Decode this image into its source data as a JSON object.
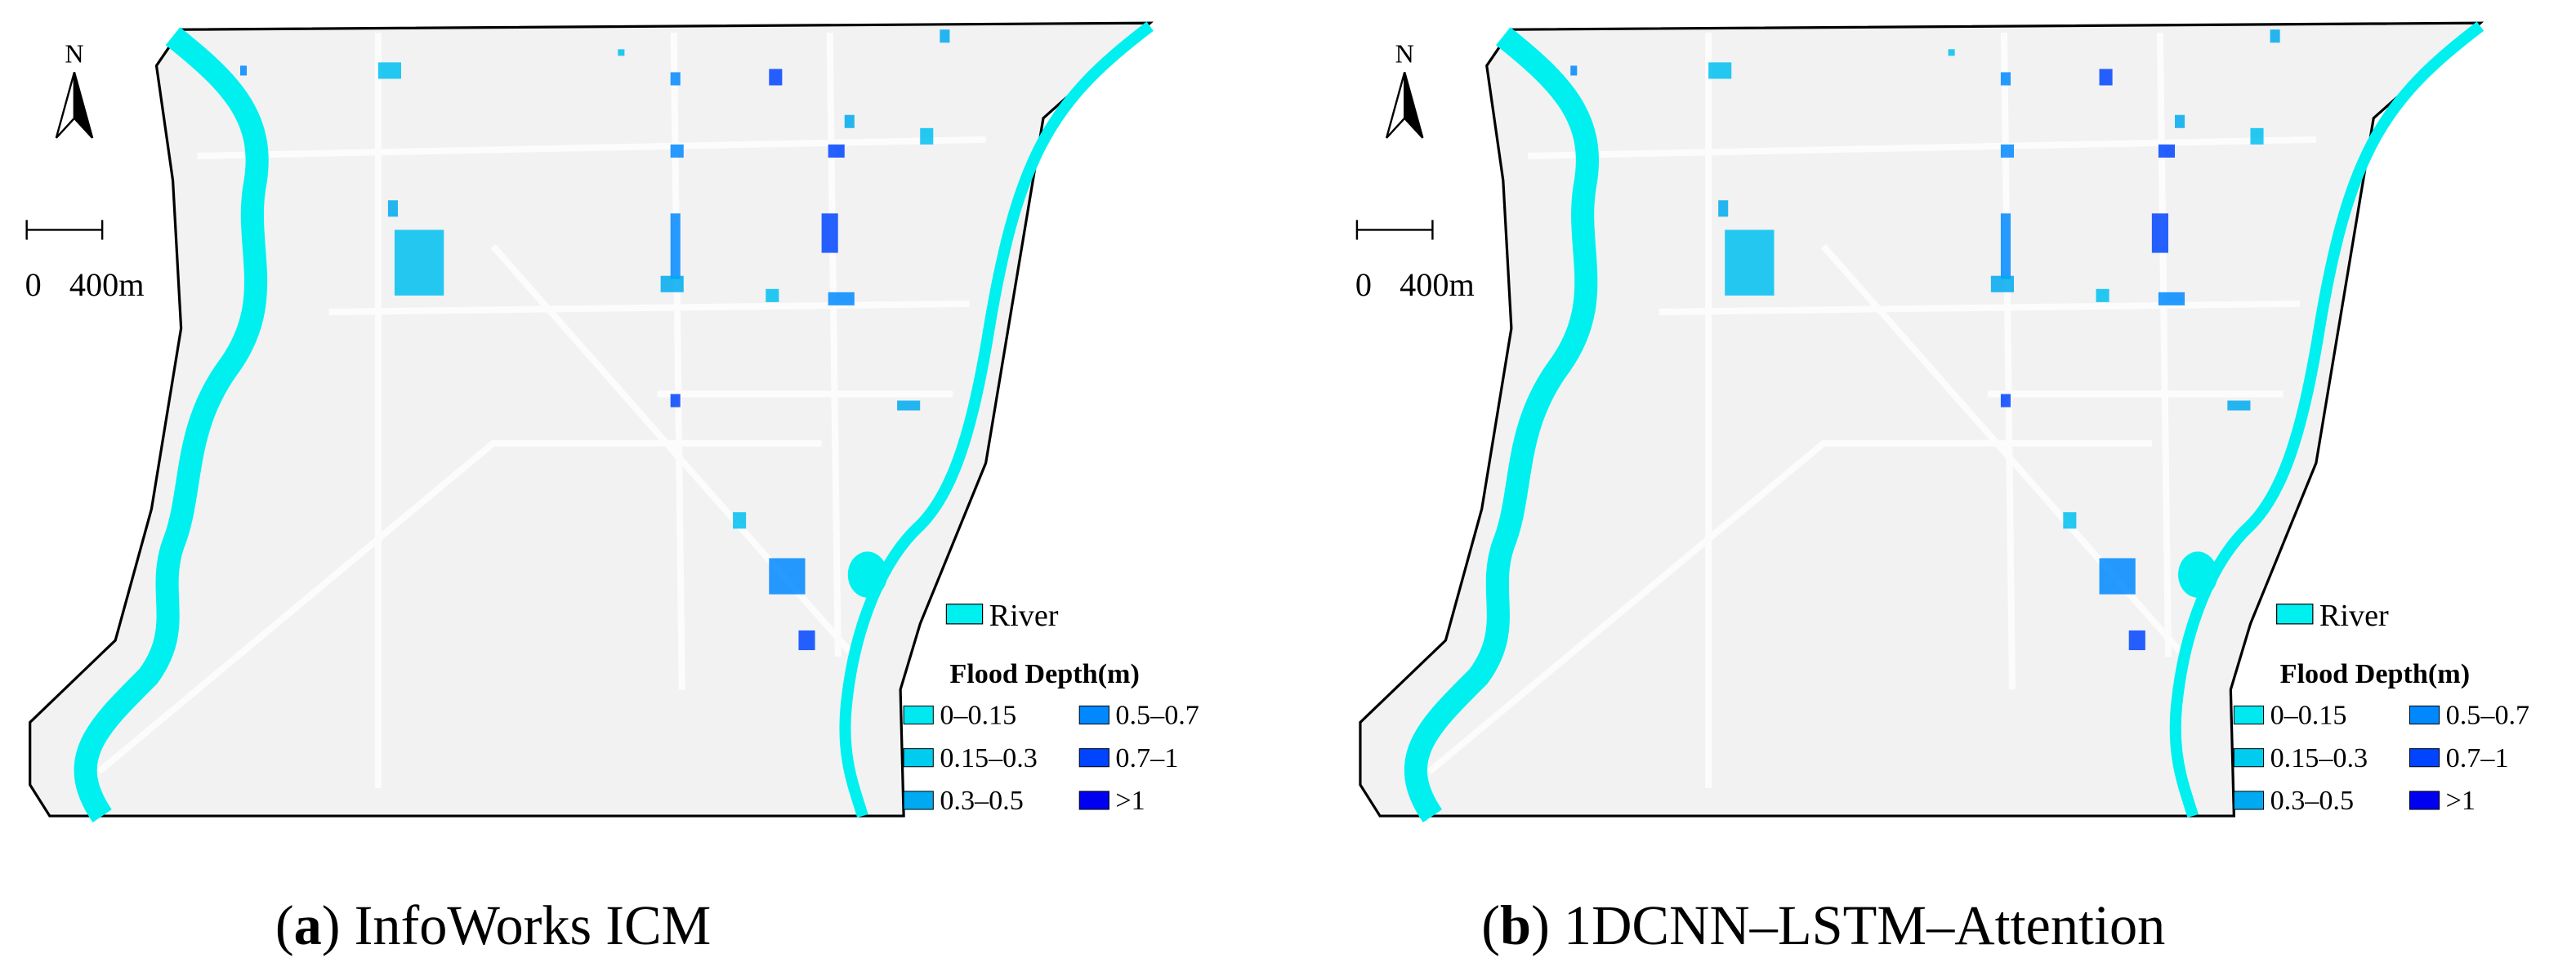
{
  "panels": [
    {
      "north": "N",
      "scale_start": "0",
      "scale_end": "400m",
      "river_label": "River",
      "legend_title": "Flood Depth(m)",
      "legend_items": [
        {
          "label": "0–0.15",
          "color": "#00e8f0"
        },
        {
          "label": "0.15–0.3",
          "color": "#00ccf0"
        },
        {
          "label": "0.3–0.5",
          "color": "#00aaf0"
        },
        {
          "label": "0.5–0.7",
          "color": "#0088ff"
        },
        {
          "label": "0.7–1",
          "color": "#0044ff"
        },
        {
          "label": ">1",
          "color": "#0000f0"
        }
      ],
      "caption": {
        "open": "(",
        "letter": "a",
        "text": ") InfoWorks ICM"
      }
    },
    {
      "north": "N",
      "scale_start": "0",
      "scale_end": "400m",
      "river_label": "River",
      "legend_title": "Flood Depth(m)",
      "legend_items": [
        {
          "label": "0–0.15",
          "color": "#00e8f0"
        },
        {
          "label": "0.15–0.3",
          "color": "#00ccf0"
        },
        {
          "label": "0.3–0.5",
          "color": "#00aaf0"
        },
        {
          "label": "0.5–0.7",
          "color": "#0088ff"
        },
        {
          "label": "0.7–1",
          "color": "#0044ff"
        },
        {
          "label": ">1",
          "color": "#0000f0"
        }
      ],
      "caption": {
        "open": "(",
        "letter": "b",
        "text": ") 1DCNN–LSTM–Attention"
      }
    }
  ]
}
